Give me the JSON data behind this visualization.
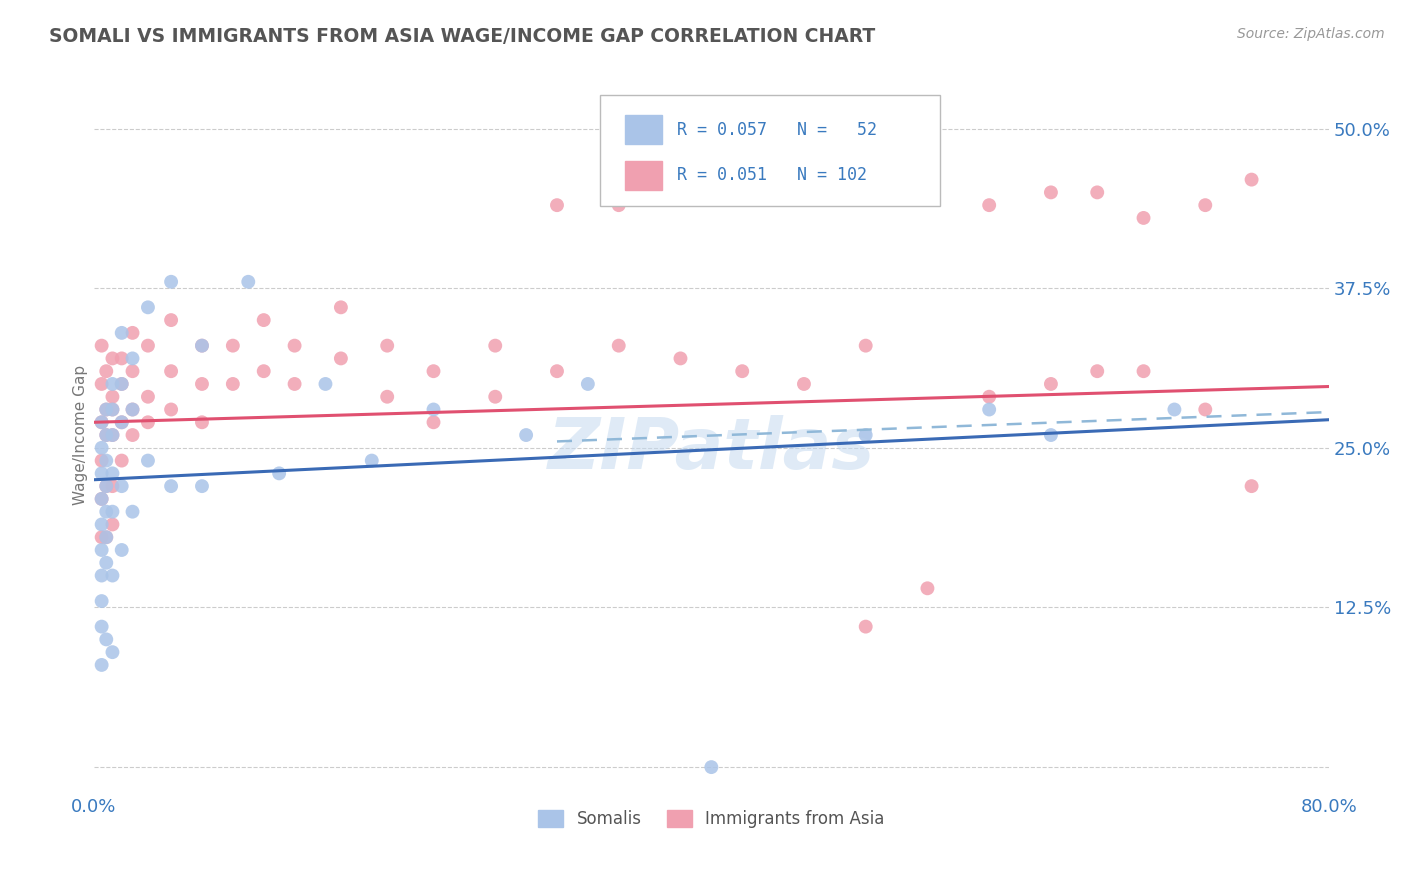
{
  "title": "SOMALI VS IMMIGRANTS FROM ASIA WAGE/INCOME GAP CORRELATION CHART",
  "source": "Source: ZipAtlas.com",
  "ylabel": "Wage/Income Gap",
  "xlim": [
    0.0,
    0.8
  ],
  "ylim": [
    -0.02,
    0.54
  ],
  "yticks": [
    0.0,
    0.125,
    0.25,
    0.375,
    0.5
  ],
  "ytick_labels": [
    "",
    "12.5%",
    "25.0%",
    "37.5%",
    "50.0%"
  ],
  "xticks": [
    0.0,
    0.2,
    0.4,
    0.6,
    0.8
  ],
  "xtick_labels": [
    "0.0%",
    "",
    "",
    "",
    "80.0%"
  ],
  "somali_color": "#aac4e8",
  "asia_color": "#f0a0b0",
  "somali_line_color": "#3a6ab5",
  "asia_line_color": "#e05070",
  "dashed_line_color": "#90b8d8",
  "background_color": "#ffffff",
  "grid_color": "#cccccc",
  "axis_color": "#3a7abf",
  "watermark": "ZIPatlas",
  "somali_x": [
    0.005,
    0.005,
    0.005,
    0.005,
    0.005,
    0.005,
    0.005,
    0.005,
    0.005,
    0.005,
    0.008,
    0.008,
    0.008,
    0.008,
    0.008,
    0.008,
    0.008,
    0.008,
    0.012,
    0.012,
    0.012,
    0.012,
    0.012,
    0.012,
    0.012,
    0.018,
    0.018,
    0.018,
    0.018,
    0.018,
    0.025,
    0.025,
    0.025,
    0.035,
    0.035,
    0.05,
    0.05,
    0.07,
    0.07,
    0.1,
    0.12,
    0.15,
    0.18,
    0.22,
    0.28,
    0.32,
    0.4,
    0.5,
    0.58,
    0.62,
    0.7
  ],
  "somali_y": [
    0.27,
    0.25,
    0.23,
    0.21,
    0.19,
    0.17,
    0.15,
    0.13,
    0.11,
    0.08,
    0.28,
    0.26,
    0.24,
    0.22,
    0.2,
    0.18,
    0.16,
    0.1,
    0.3,
    0.28,
    0.26,
    0.23,
    0.2,
    0.15,
    0.09,
    0.34,
    0.3,
    0.27,
    0.22,
    0.17,
    0.32,
    0.28,
    0.2,
    0.36,
    0.24,
    0.38,
    0.22,
    0.33,
    0.22,
    0.38,
    0.23,
    0.3,
    0.24,
    0.28,
    0.26,
    0.3,
    0.0,
    0.26,
    0.28,
    0.26,
    0.28
  ],
  "asia_x": [
    0.005,
    0.005,
    0.005,
    0.005,
    0.005,
    0.005,
    0.008,
    0.008,
    0.008,
    0.008,
    0.008,
    0.012,
    0.012,
    0.012,
    0.012,
    0.012,
    0.012,
    0.018,
    0.018,
    0.018,
    0.018,
    0.025,
    0.025,
    0.025,
    0.025,
    0.035,
    0.035,
    0.035,
    0.05,
    0.05,
    0.05,
    0.07,
    0.07,
    0.07,
    0.09,
    0.09,
    0.11,
    0.11,
    0.13,
    0.13,
    0.16,
    0.16,
    0.19,
    0.19,
    0.22,
    0.22,
    0.26,
    0.26,
    0.3,
    0.3,
    0.34,
    0.34,
    0.38,
    0.38,
    0.42,
    0.42,
    0.46,
    0.46,
    0.5,
    0.5,
    0.54,
    0.58,
    0.58,
    0.62,
    0.62,
    0.65,
    0.65,
    0.68,
    0.68,
    0.72,
    0.72,
    0.75,
    0.75
  ],
  "asia_y": [
    0.27,
    0.3,
    0.33,
    0.24,
    0.21,
    0.18,
    0.28,
    0.26,
    0.31,
    0.22,
    0.18,
    0.29,
    0.32,
    0.26,
    0.22,
    0.19,
    0.28,
    0.3,
    0.27,
    0.24,
    0.32,
    0.31,
    0.28,
    0.34,
    0.26,
    0.29,
    0.33,
    0.27,
    0.31,
    0.28,
    0.35,
    0.3,
    0.33,
    0.27,
    0.3,
    0.33,
    0.31,
    0.35,
    0.3,
    0.33,
    0.32,
    0.36,
    0.29,
    0.33,
    0.31,
    0.27,
    0.33,
    0.29,
    0.44,
    0.31,
    0.33,
    0.44,
    0.32,
    0.46,
    0.31,
    0.47,
    0.3,
    0.48,
    0.33,
    0.11,
    0.14,
    0.29,
    0.44,
    0.3,
    0.45,
    0.31,
    0.45,
    0.31,
    0.43,
    0.28,
    0.44,
    0.22,
    0.46
  ]
}
